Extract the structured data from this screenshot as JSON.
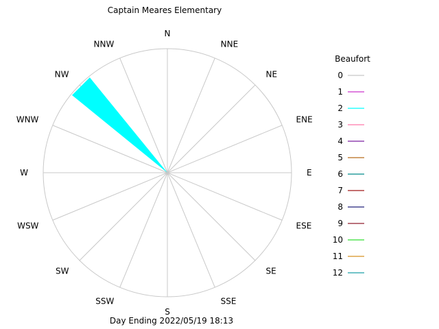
{
  "chart_data": {
    "type": "wind-rose",
    "title": "Captain Meares Elementary",
    "footer": "Day Ending 2022/05/19 18:13",
    "directions": [
      "N",
      "NNE",
      "NE",
      "ENE",
      "E",
      "ESE",
      "SE",
      "SSE",
      "S",
      "SSW",
      "SW",
      "WSW",
      "W",
      "WNW",
      "NW",
      "NNW"
    ],
    "legend": {
      "title": "Beaufort",
      "entries": [
        {
          "label": "0",
          "color": "#c8c8c8"
        },
        {
          "label": "1",
          "color": "#cc33cc"
        },
        {
          "label": "2",
          "color": "#00ffff"
        },
        {
          "label": "3",
          "color": "#ff77aa"
        },
        {
          "label": "4",
          "color": "#7a1fa0"
        },
        {
          "label": "5",
          "color": "#b86a1a"
        },
        {
          "label": "6",
          "color": "#008b8b"
        },
        {
          "label": "7",
          "color": "#a01818"
        },
        {
          "label": "8",
          "color": "#20207a"
        },
        {
          "label": "9",
          "color": "#901c2c"
        },
        {
          "label": "10",
          "color": "#33dd33"
        },
        {
          "label": "11",
          "color": "#d89020"
        },
        {
          "label": "12",
          "color": "#1a9fa8"
        }
      ]
    },
    "petals": [
      {
        "direction": "NW",
        "beaufort": "2",
        "fraction": 0.99,
        "color": "#00ffff"
      }
    ]
  }
}
